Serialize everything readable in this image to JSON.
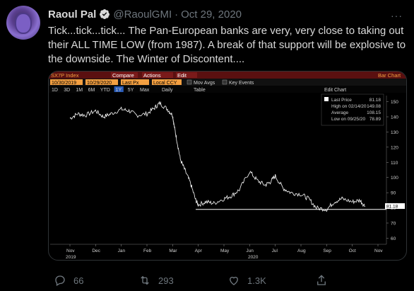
{
  "tweet": {
    "author_name": "Raoul Pal",
    "handle": "@RaoulGMI",
    "separator": "·",
    "date": "Oct 29, 2020",
    "more": "···",
    "text": "Tick...tick...tick... The Pan-European banks are very, very close to taking out their ALL TIME LOW (from 1987). A break of that support will be explosive to the downside. The Winter of Discontent....",
    "replies": "66",
    "retweets": "293",
    "likes": "1.3K"
  },
  "terminal": {
    "ticker": "SX7P Index",
    "compare": "Compare",
    "actions": "Actions",
    "edit": "Edit",
    "bar_chart": "Bar Chart",
    "start_date": "10/30/2019",
    "end_date": "10/29/2020",
    "field": "Last Px",
    "currency": "Local CCY",
    "mov_avgs": "Mov Avgs",
    "key_events": "Key Events",
    "periods": [
      "1D",
      "3D",
      "1M",
      "6M",
      "YTD",
      "1Y",
      "5Y",
      "Max"
    ],
    "selected_period": "1Y",
    "frequency": "Daily",
    "table": "Table",
    "edit_chart": "Edit Chart",
    "legend": [
      {
        "label": "Last Price",
        "value": "81.18"
      },
      {
        "label": "High on 02/14/20",
        "value": "149.08"
      },
      {
        "label": "Average",
        "value": "108.15"
      },
      {
        "label": "Low on 09/25/20",
        "value": "78.89"
      }
    ],
    "last_marker": "81.18",
    "colors": {
      "background": "#000000",
      "orange": "#f39f41",
      "red_bar": "#6b1212",
      "line": "#ffffff"
    }
  },
  "chart_data": {
    "type": "line",
    "title": "SX7P Index",
    "x_ticks": [
      "Nov",
      "Dec",
      "Jan",
      "Feb",
      "Mar",
      "Apr",
      "May",
      "Jun",
      "Jul",
      "Aug",
      "Sep",
      "Oct",
      "Nov"
    ],
    "year_labels": [
      "2019",
      "2020"
    ],
    "y_ticks": [
      150,
      140,
      130,
      120,
      110,
      100,
      90,
      80,
      70,
      60
    ],
    "ylim": [
      56,
      154
    ],
    "support_level": 79,
    "series": [
      {
        "x": [
          0,
          0.3,
          0.6,
          1.0,
          1.3,
          1.6,
          2.0,
          2.3,
          2.6,
          3.0,
          3.3,
          3.5,
          3.8,
          4.0,
          4.05,
          4.15,
          4.3,
          4.5,
          4.7,
          4.9,
          5.0,
          5.3,
          5.6,
          6.0,
          6.3,
          6.6,
          7.0,
          7.3,
          7.6,
          7.8,
          8.0,
          8.3,
          8.6,
          9.0,
          9.3,
          9.6,
          10.0,
          10.3,
          10.6,
          11.0,
          11.3,
          11.5
        ],
        "values": [
          139,
          142,
          141,
          144,
          140,
          142,
          145,
          144,
          141,
          142,
          146,
          149,
          145,
          141,
          135,
          126,
          112,
          104,
          96,
          85,
          82,
          84,
          83,
          86,
          88,
          92,
          104,
          98,
          95,
          97,
          101,
          93,
          90,
          89,
          86,
          80,
          79,
          84,
          86,
          84,
          85,
          81
        ]
      }
    ]
  }
}
